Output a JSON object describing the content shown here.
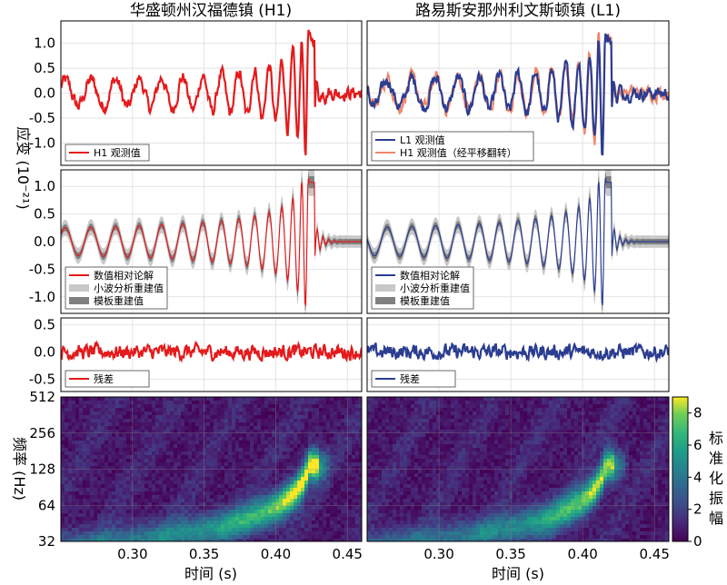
{
  "chart_data": {
    "type": "line",
    "columns": [
      {
        "id": "h1",
        "title": "华盛顿州汉福德镇 (H1)"
      },
      {
        "id": "l1",
        "title": "路易斯安那州利文斯顿镇 (L1)"
      }
    ],
    "shared": {
      "xlabel": "时间 (s)",
      "xticks": [
        0.3,
        0.35,
        0.4,
        0.45
      ],
      "xtick_labels": [
        "0.30",
        "0.35",
        "0.40",
        "0.45"
      ],
      "xlim": [
        0.25,
        0.46
      ],
      "strain_ylabel": "应变 (10⁻²¹)",
      "freq_ylabel": "频率 (Hz)"
    },
    "rows": [
      {
        "id": "observed",
        "ylim": [
          -1.45,
          1.45
        ],
        "yticks": [
          -1.0,
          -0.5,
          0.0,
          0.5,
          1.0
        ],
        "ytick_labels": [
          "-1.0",
          "-0.5",
          "0.0",
          "0.5",
          "1.0"
        ],
        "legend": {
          "h1": [
            {
              "label": "H1 观测值",
              "color": "#e41a1c",
              "style": "line"
            }
          ],
          "l1": [
            {
              "label": "L1 观测值",
              "color": "#2b3d91",
              "style": "line"
            },
            {
              "label": "H1 观测值（经平移翻转）",
              "color": "#f0866a",
              "style": "line"
            }
          ]
        }
      },
      {
        "id": "reconstruction",
        "ylim": [
          -1.3,
          1.3
        ],
        "yticks": [
          -1.0,
          -0.5,
          0.0,
          0.5,
          1.0
        ],
        "ytick_labels": [
          "-1.0",
          "-0.5",
          "0.0",
          "0.5",
          "1.0"
        ],
        "legend": {
          "h1": [
            {
              "label": "数值相对论解",
              "color": "#e41a1c",
              "style": "line"
            },
            {
              "label": "小波分析重建值",
              "color": "#c8c8c8",
              "style": "band"
            },
            {
              "label": "模板重建值",
              "color": "#808080",
              "style": "band"
            }
          ],
          "l1": [
            {
              "label": "数值相对论解",
              "color": "#2b3d91",
              "style": "line"
            },
            {
              "label": "小波分析重建值",
              "color": "#c8c8c8",
              "style": "band"
            },
            {
              "label": "模板重建值",
              "color": "#808080",
              "style": "band"
            }
          ]
        }
      },
      {
        "id": "residual",
        "ylim": [
          -0.72,
          0.62
        ],
        "yticks": [
          -0.5,
          0.0,
          0.5
        ],
        "ytick_labels": [
          "-0.5",
          "0.0",
          "0.5"
        ],
        "legend": {
          "h1": [
            {
              "label": "残差",
              "color": "#e41a1c",
              "style": "line"
            }
          ],
          "l1": [
            {
              "label": "残差",
              "color": "#2b3d91",
              "style": "line"
            }
          ]
        }
      },
      {
        "id": "spectrogram",
        "type": "heatmap",
        "yscale": "log",
        "yticks": [
          32,
          64,
          128,
          256,
          512
        ],
        "ytick_labels": [
          "32",
          "64",
          "128",
          "256",
          "512"
        ],
        "colorbar": {
          "label": "标准化振幅",
          "ticks": [
            0,
            2,
            4,
            6,
            8
          ],
          "tick_labels": [
            "0",
            "2",
            "4",
            "6",
            "8"
          ],
          "range": [
            0,
            9
          ],
          "colormap": "viridis"
        },
        "peak": {
          "h1": {
            "t": 0.422,
            "f": 130,
            "value": 9
          },
          "l1": {
            "t": 0.415,
            "f": 120,
            "value": 8
          }
        }
      }
    ]
  }
}
